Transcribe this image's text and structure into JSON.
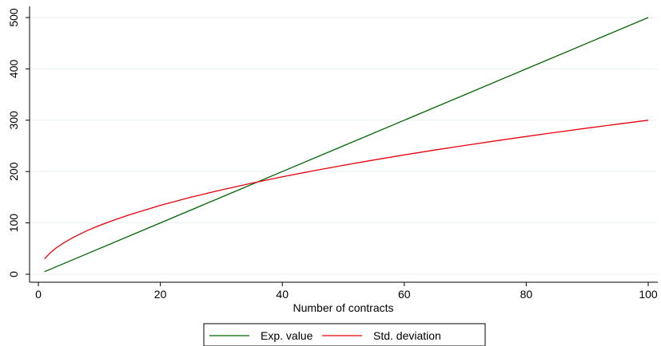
{
  "chart_data": {
    "type": "line",
    "title": "",
    "xlabel": "Number of contracts",
    "ylabel": "",
    "xlim": [
      0,
      100
    ],
    "ylim": [
      0,
      500
    ],
    "x_ticks": [
      0,
      20,
      40,
      60,
      80,
      100
    ],
    "y_ticks": [
      0,
      100,
      200,
      300,
      400,
      500
    ],
    "grid": true,
    "legend_position": "bottom",
    "series": [
      {
        "name": "Exp. value",
        "color": "#006400",
        "x": [
          1,
          10,
          20,
          30,
          40,
          50,
          60,
          70,
          80,
          90,
          100
        ],
        "y": [
          5,
          50,
          100,
          150,
          200,
          250,
          300,
          350,
          400,
          450,
          500
        ]
      },
      {
        "name": "Std. deviation",
        "color": "#e8000b",
        "x": [
          1,
          2,
          3,
          4,
          5,
          6,
          8,
          10,
          12,
          15,
          20,
          25,
          30,
          35,
          40,
          45,
          50,
          55,
          60,
          65,
          70,
          75,
          80,
          85,
          90,
          95,
          100
        ],
        "y": [
          30,
          42.4,
          52,
          60,
          67.1,
          73.5,
          84.9,
          94.9,
          103.9,
          116.2,
          134.2,
          150,
          164.3,
          177.5,
          189.7,
          201.2,
          212.1,
          222.5,
          232.4,
          241.9,
          251,
          259.8,
          268.3,
          276.6,
          284.6,
          292.4,
          300
        ]
      }
    ]
  }
}
